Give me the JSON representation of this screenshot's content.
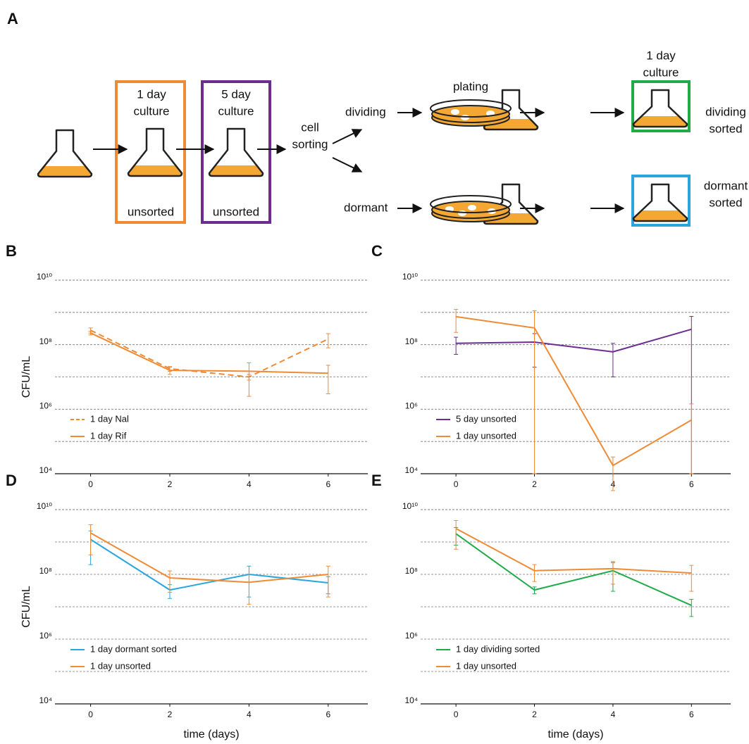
{
  "diagram": {
    "panel": "A",
    "flask_one_day": [
      "1 day",
      "culture"
    ],
    "unsorted_one": "unsorted",
    "flask_five_day": [
      "5 day",
      "culture"
    ],
    "unsorted_five": "unsorted",
    "cell_sorting": [
      "cell",
      "sorting"
    ],
    "dividing": "dividing",
    "dormant": "dormant",
    "plating": "plating",
    "regrow": [
      "1 day",
      "culture"
    ],
    "dividing_sorted": [
      "dividing",
      "sorted"
    ],
    "dormant_sorted": [
      "dormant",
      "sorted"
    ]
  },
  "chart_data": [
    {
      "type": "line",
      "panel": "B",
      "ylabel": "CFU/mL",
      "x": [
        0,
        2,
        4,
        6
      ],
      "xlim": [
        -0.9,
        7
      ],
      "xticks": [
        0,
        2,
        4,
        6
      ],
      "ylim": [
        10000,
        10000000000
      ],
      "log_y": true,
      "grid": true,
      "legend": "lower left",
      "yticks": [
        {
          "value": 10000,
          "label": "10⁴"
        },
        {
          "value": 1000000,
          "label": "10⁶"
        },
        {
          "value": 100000000,
          "label": "10⁸"
        },
        {
          "value": 10000000000,
          "label": "10¹⁰"
        }
      ],
      "yminor": [
        100000,
        10000000,
        1000000000
      ],
      "series": [
        {
          "name": "1 day Nal",
          "color": "#ef8a35",
          "dashed": true,
          "values": [
            280000000,
            18000000,
            10000000,
            150000000
          ],
          "errors": [
            50000000,
            3000000,
            2000000,
            70000000
          ]
        },
        {
          "name": "1 day Rif",
          "color": "#ef8a35",
          "dashed": false,
          "values": [
            230000000,
            16000000,
            15000000,
            13000000
          ],
          "errors": [
            30000000,
            4000000,
            12500000,
            10000000
          ]
        }
      ]
    },
    {
      "type": "line",
      "panel": "C",
      "x": [
        0,
        2,
        4,
        6
      ],
      "xlim": [
        -0.9,
        7
      ],
      "xticks": [
        0,
        2,
        4,
        6
      ],
      "ylim": [
        10000,
        10000000000
      ],
      "log_y": true,
      "grid": true,
      "legend": "lower left",
      "yticks": [
        {
          "value": 10000,
          "label": "10⁴"
        },
        {
          "value": 1000000,
          "label": "10⁶"
        },
        {
          "value": 100000000,
          "label": "10⁸"
        },
        {
          "value": 10000000000,
          "label": "10¹⁰"
        }
      ],
      "yminor": [
        100000,
        10000000,
        1000000000
      ],
      "series": [
        {
          "name": "5 day unsorted",
          "color": "#6b2d8f",
          "dashed": false,
          "values": [
            110000000,
            120000000,
            60000000,
            300000000
          ],
          "errors": [
            60000000,
            100000000,
            50000000,
            450000000
          ]
        },
        {
          "name": "1 day unsorted",
          "color": "#ef8a35",
          "dashed": false,
          "values": [
            740000000,
            330000000,
            18000,
            460000
          ],
          "errors": [
            500000000,
            800000000,
            15000,
            1000000
          ]
        }
      ]
    },
    {
      "type": "line",
      "panel": "D",
      "ylabel": "CFU/mL",
      "xlabel": "time (days)",
      "x": [
        0,
        2,
        4,
        6
      ],
      "xlim": [
        -0.9,
        7
      ],
      "xticks": [
        0,
        2,
        4,
        6
      ],
      "ylim": [
        10000,
        10000000000
      ],
      "log_y": true,
      "grid": true,
      "legend": "lower left",
      "yticks": [
        {
          "value": 10000,
          "label": "10⁴"
        },
        {
          "value": 1000000,
          "label": "10⁶"
        },
        {
          "value": 100000000,
          "label": "10⁸"
        },
        {
          "value": 10000000000,
          "label": "10¹⁰"
        }
      ],
      "yminor": [
        100000,
        10000000,
        1000000000
      ],
      "series": [
        {
          "name": "1 day dormant sorted",
          "color": "#2aa6dd",
          "dashed": false,
          "values": [
            1200000000,
            33000000,
            100000000,
            55000000
          ],
          "errors": [
            1000000000,
            15000000,
            80000000,
            30000000
          ]
        },
        {
          "name": "1 day unsorted",
          "color": "#ef8a35",
          "dashed": false,
          "values": [
            1900000000,
            78000000,
            57000000,
            100000000
          ],
          "errors": [
            1500000000,
            50000000,
            45000000,
            80000000
          ]
        }
      ]
    },
    {
      "type": "line",
      "panel": "E",
      "xlabel": "time (days)",
      "x": [
        0,
        2,
        4,
        6
      ],
      "xlim": [
        -0.9,
        7
      ],
      "xticks": [
        0,
        2,
        4,
        6
      ],
      "ylim": [
        10000,
        10000000000
      ],
      "log_y": true,
      "grid": true,
      "legend": "lower left",
      "yticks": [
        {
          "value": 10000,
          "label": "10⁴"
        },
        {
          "value": 1000000,
          "label": "10⁶"
        },
        {
          "value": 100000000,
          "label": "10⁸"
        },
        {
          "value": 10000000000,
          "label": "10¹⁰"
        }
      ],
      "yminor": [
        100000,
        10000000,
        1000000000
      ],
      "series": [
        {
          "name": "1 day dividing sorted",
          "color": "#20aa4a",
          "dashed": false,
          "values": [
            1800000000,
            33000000,
            130000000,
            11000000
          ],
          "errors": [
            1000000000,
            8000000,
            100000000,
            6000000
          ]
        },
        {
          "name": "1 day unsorted",
          "color": "#ef8a35",
          "dashed": false,
          "values": [
            2600000000,
            130000000,
            150000000,
            110000000
          ],
          "errors": [
            2000000000,
            70000000,
            100000000,
            80000000
          ]
        }
      ]
    }
  ]
}
